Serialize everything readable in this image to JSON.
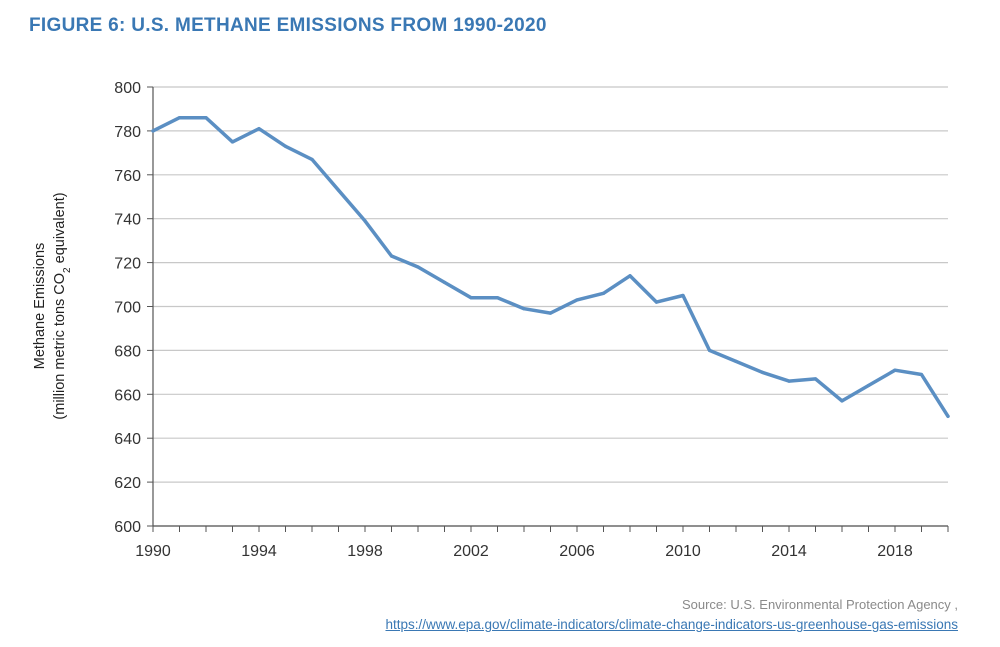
{
  "figure_title": "FIGURE 6: U.S. METHANE EMISSIONS FROM 1990-2020",
  "source": {
    "text": "Source: U.S. Environmental Protection Agency ,",
    "link": "https://www.epa.gov/climate-indicators/climate-change-indicators-us-greenhouse-gas-emissions"
  },
  "chart_data": {
    "type": "line",
    "title": "FIGURE 6: U.S. METHANE EMISSIONS FROM 1990-2020",
    "ylabel_line1": "Methane Emissions",
    "ylabel_line2_pre": "(million metric tons CO",
    "ylabel_line2_sub": "2",
    "ylabel_line2_post": " equivalent)",
    "xlim": [
      1990,
      2020
    ],
    "ylim": [
      600,
      800
    ],
    "xticks": [
      1990,
      1994,
      1998,
      2002,
      2006,
      2010,
      2014,
      2018
    ],
    "yticks": [
      600,
      620,
      640,
      660,
      680,
      700,
      720,
      740,
      760,
      780,
      800
    ],
    "grid": "horizontal",
    "color": "#5b8fc3",
    "series": [
      {
        "x": [
          1990,
          1991,
          1992,
          1993,
          1994,
          1995,
          1996,
          1997,
          1998,
          1999,
          2000,
          2001,
          2002,
          2003,
          2004,
          2005,
          2006,
          2007,
          2008,
          2009,
          2010,
          2011,
          2012,
          2013,
          2014,
          2015,
          2016,
          2017,
          2018,
          2019,
          2020
        ],
        "values": [
          780,
          786,
          786,
          775,
          781,
          773,
          767,
          753,
          739,
          723,
          718,
          711,
          704,
          704,
          699,
          697,
          703,
          706,
          714,
          702,
          705,
          680,
          675,
          670,
          666,
          667,
          657,
          664,
          671,
          669,
          650
        ]
      }
    ]
  }
}
